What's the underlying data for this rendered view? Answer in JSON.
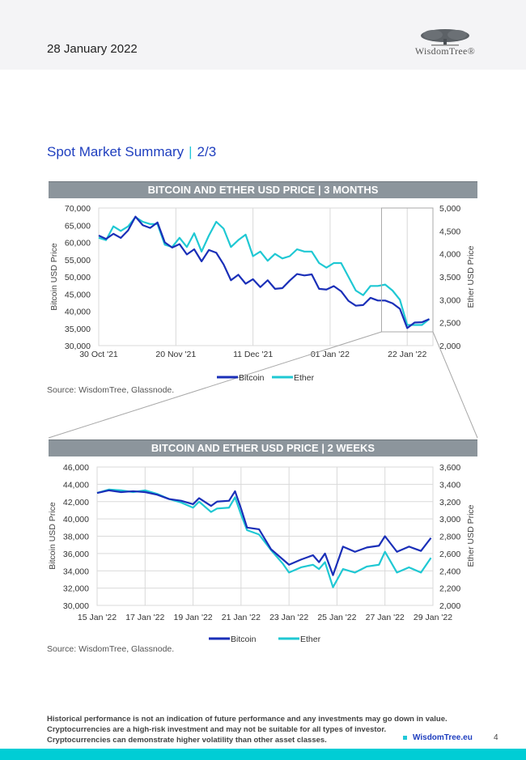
{
  "header": {
    "date": "28 January 2022",
    "logo_text": "WisdomTree®"
  },
  "section_title": {
    "main": "Spot Market Summary",
    "separator": "|",
    "page": "2/3"
  },
  "footer": {
    "disclaimer": [
      "Historical performance is not an indication of future performance and any investments may go down in value.",
      "Cryptocurrencies are a high-risk investment and may not be suitable for all types of investor.",
      "Cryptocurrencies can demonstrate higher volatility than other asset classes."
    ],
    "link": "WisdomTree.eu",
    "page_number": "4"
  },
  "colors": {
    "bitcoin": "#1a2fb8",
    "ether": "#1fc8d3",
    "banner": "#8c959c",
    "accent": "#00cdd5",
    "title": "#1f3fbf"
  },
  "chart_data": [
    {
      "type": "line",
      "title": "BITCOIN AND ETHER USD PRICE  |  3 MONTHS",
      "source": "Source: WisdomTree, Glassnode.",
      "ylabel": "Bitcoin USD Price",
      "y2label": "Ether USD Price",
      "xlim": [
        "2021-10-30",
        "2022-01-29"
      ],
      "ylim": [
        30000,
        70000
      ],
      "y2lim": [
        2000,
        5000
      ],
      "xticks": [
        "2021-10-30",
        "2021-11-20",
        "2021-12-11",
        "2022-01-01",
        "2022-01-22"
      ],
      "xtick_labels": [
        "30 Oct '21",
        "20 Nov '21",
        "11 Dec '21",
        "01 Jan '22",
        "22 Jan '22"
      ],
      "yticks": [
        "30,000",
        "35,000",
        "40,000",
        "45,000",
        "50,000",
        "55,000",
        "60,000",
        "65,000",
        "70,000"
      ],
      "y2ticks": [
        "2,000",
        "2,500",
        "3,000",
        "3,500",
        "4,000",
        "4,500",
        "5,000"
      ],
      "grid": "vertical",
      "legend": "bottom",
      "x": [
        "2021-10-30",
        "2021-11-01",
        "2021-11-03",
        "2021-11-05",
        "2021-11-07",
        "2021-11-09",
        "2021-11-11",
        "2021-11-13",
        "2021-11-15",
        "2021-11-17",
        "2021-11-19",
        "2021-11-21",
        "2021-11-23",
        "2021-11-25",
        "2021-11-27",
        "2021-11-29",
        "2021-12-01",
        "2021-12-03",
        "2021-12-05",
        "2021-12-07",
        "2021-12-09",
        "2021-12-11",
        "2021-12-13",
        "2021-12-15",
        "2021-12-17",
        "2021-12-19",
        "2021-12-21",
        "2021-12-23",
        "2021-12-25",
        "2021-12-27",
        "2021-12-29",
        "2021-12-31",
        "2022-01-02",
        "2022-01-04",
        "2022-01-06",
        "2022-01-08",
        "2022-01-10",
        "2022-01-12",
        "2022-01-14",
        "2022-01-16",
        "2022-01-18",
        "2022-01-20",
        "2022-01-22",
        "2022-01-24",
        "2022-01-26",
        "2022-01-28"
      ],
      "series": [
        {
          "name": "Bitcoin",
          "axis": "left",
          "values": [
            62000,
            61000,
            62500,
            61300,
            63500,
            67500,
            65000,
            64200,
            65800,
            60000,
            58500,
            59500,
            56500,
            58000,
            54500,
            57800,
            57000,
            53600,
            49000,
            50600,
            48000,
            49300,
            47000,
            49000,
            46500,
            46700,
            48900,
            50800,
            50400,
            50700,
            46500,
            46300,
            47300,
            45800,
            43000,
            41600,
            41800,
            43900,
            43100,
            43100,
            42300,
            40700,
            35100,
            36700,
            36800,
            37700
          ]
        },
        {
          "name": "Ether",
          "axis": "right",
          "values": [
            4350,
            4300,
            4600,
            4500,
            4600,
            4800,
            4700,
            4650,
            4650,
            4200,
            4150,
            4350,
            4150,
            4450,
            4050,
            4400,
            4700,
            4550,
            4150,
            4300,
            4420,
            3950,
            4050,
            3850,
            4000,
            3900,
            3950,
            4100,
            4050,
            4050,
            3800,
            3700,
            3800,
            3800,
            3500,
            3200,
            3100,
            3300,
            3300,
            3330,
            3200,
            3000,
            2450,
            2450,
            2450,
            2580
          ]
        }
      ],
      "highlight_range": [
        "2022-01-15",
        "2022-01-29"
      ]
    },
    {
      "type": "line",
      "title": "BITCOIN AND ETHER USD PRICE  |  2 WEEKS",
      "source": "Source: WisdomTree, Glassnode.",
      "ylabel": "Bitcoin USD Price",
      "y2label": "Ether USD Price",
      "xlim": [
        "2022-01-15 00:00",
        "2022-01-29 00:00"
      ],
      "ylim": [
        30000,
        46000
      ],
      "y2lim": [
        2000,
        3600
      ],
      "xticks": [
        "2022-01-15 00:00",
        "2022-01-17 00:00",
        "2022-01-19 00:00",
        "2022-01-21 00:00",
        "2022-01-23 00:00",
        "2022-01-25 00:00",
        "2022-01-27 00:00",
        "2022-01-29 00:00"
      ],
      "xtick_labels": [
        "15 Jan '22",
        "17 Jan '22",
        "19 Jan '22",
        "21 Jan '22",
        "23 Jan '22",
        "25 Jan '22",
        "27 Jan '22",
        "29 Jan '22"
      ],
      "yticks": [
        "30,000",
        "32,000",
        "34,000",
        "36,000",
        "38,000",
        "40,000",
        "42,000",
        "44,000",
        "46,000"
      ],
      "y2ticks": [
        "2,000",
        "2,200",
        "2,400",
        "2,600",
        "2,800",
        "3,000",
        "3,200",
        "3,400",
        "3,600"
      ],
      "grid": "both",
      "legend": "bottom",
      "x": [
        "2022-01-15 00:00",
        "2022-01-15 12:00",
        "2022-01-16 00:00",
        "2022-01-16 12:00",
        "2022-01-17 00:00",
        "2022-01-17 12:00",
        "2022-01-18 00:00",
        "2022-01-18 12:00",
        "2022-01-19 00:00",
        "2022-01-19 06:00",
        "2022-01-19 18:00",
        "2022-01-20 00:00",
        "2022-01-20 12:00",
        "2022-01-20 18:00",
        "2022-01-21 00:00",
        "2022-01-21 06:00",
        "2022-01-21 18:00",
        "2022-01-22 06:00",
        "2022-01-22 18:00",
        "2022-01-23 00:00",
        "2022-01-23 12:00",
        "2022-01-24 00:00",
        "2022-01-24 06:00",
        "2022-01-24 12:00",
        "2022-01-24 20:00",
        "2022-01-25 06:00",
        "2022-01-25 18:00",
        "2022-01-26 06:00",
        "2022-01-26 18:00",
        "2022-01-27 00:00",
        "2022-01-27 12:00",
        "2022-01-28 00:00",
        "2022-01-28 12:00",
        "2022-01-28 22:00"
      ],
      "series": [
        {
          "name": "Bitcoin",
          "axis": "left",
          "values": [
            43000,
            43300,
            43100,
            43200,
            43100,
            42800,
            42300,
            42100,
            41700,
            42400,
            41500,
            42000,
            42100,
            43200,
            41200,
            39000,
            38800,
            36500,
            35300,
            34700,
            35300,
            35800,
            35000,
            36000,
            33500,
            36800,
            36200,
            36700,
            36900,
            38000,
            36200,
            36800,
            36300,
            37800
          ]
        },
        {
          "name": "Ether",
          "axis": "right",
          "values": [
            3300,
            3340,
            3330,
            3310,
            3330,
            3290,
            3230,
            3190,
            3130,
            3200,
            3080,
            3120,
            3130,
            3250,
            3050,
            2870,
            2820,
            2640,
            2480,
            2380,
            2440,
            2470,
            2420,
            2500,
            2210,
            2420,
            2380,
            2450,
            2470,
            2620,
            2380,
            2440,
            2380,
            2550
          ]
        }
      ]
    }
  ]
}
